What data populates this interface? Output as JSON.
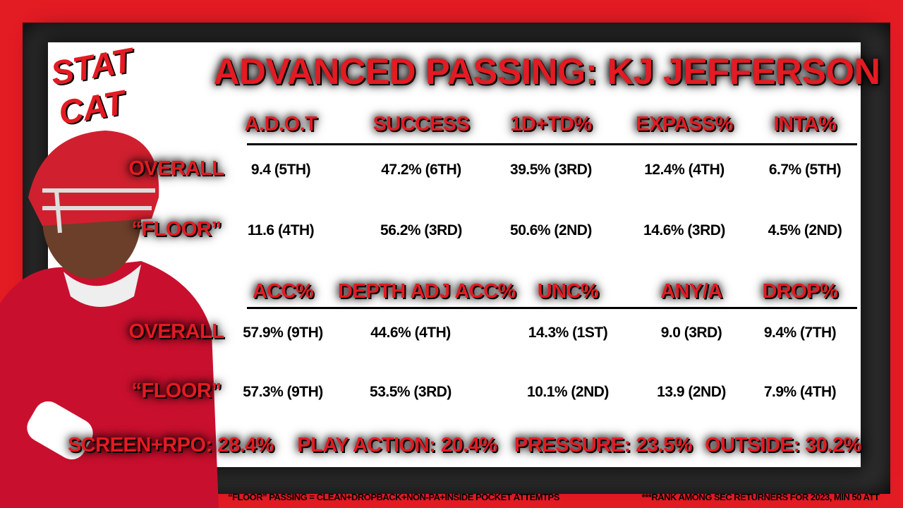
{
  "logo": [
    "STAT",
    "CAT"
  ],
  "title": "ADVANCED PASSING: KJ JEFFERSON",
  "tables": [
    {
      "columns": [
        "A.D.O.T",
        "SUCCESS",
        "1D+TD%",
        "EXPASS%",
        "INTA%"
      ],
      "rows": [
        {
          "label": "OVERALL",
          "cells": [
            "9.4  (5TH)",
            "47.2% (6TH)",
            "39.5% (3RD)",
            "12.4% (4TH)",
            "6.7% (5TH)"
          ]
        },
        {
          "label": "“FLOOR”",
          "cells": [
            "11.6 (4TH)",
            "56.2% (3RD)",
            "50.6% (2ND)",
            "14.6% (3RD)",
            "4.5% (2ND)"
          ]
        }
      ]
    },
    {
      "columns": [
        "ACC%",
        "DEPTH ADJ ACC%",
        "UNC%",
        "ANY/A",
        "DROP%"
      ],
      "rows": [
        {
          "label": "OVERALL",
          "cells": [
            "57.9% (9TH)",
            "44.6% (4TH)",
            "14.3% (1ST)",
            "9.0 (3RD)",
            "9.4% (7TH)"
          ]
        },
        {
          "label": "“FLOOR”",
          "cells": [
            "57.3% (9TH)",
            "53.5% (3RD)",
            "10.1% (2ND)",
            "13.9 (2ND)",
            "7.9% (4TH)"
          ]
        }
      ]
    }
  ],
  "summary": [
    "SCREEN+RPO: 28.4%",
    "PLAY ACTION: 20.4%",
    "PRESSURE: 23.5%",
    "OUTSIDE: 30.2%"
  ],
  "footnotes": [
    "“FLOOR” PASSING = CLEAN+DROPBACK+NON-PA+INSIDE POCKET ATTEMTPS",
    "***RANK AMONG SEC RETURNERS FOR 2023, MIN 50 ATT"
  ]
}
